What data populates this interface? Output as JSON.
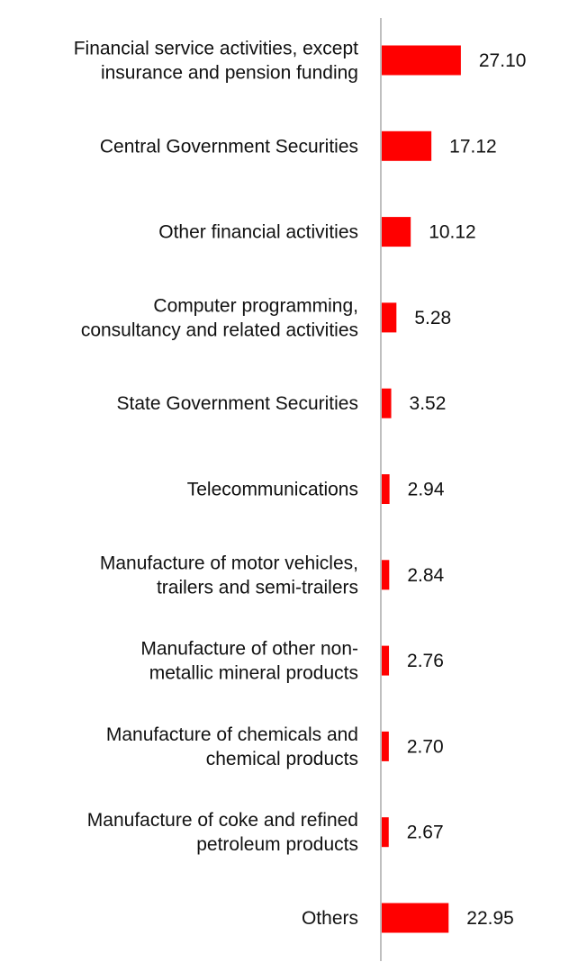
{
  "chart_data": {
    "type": "bar",
    "orientation": "horizontal",
    "title": "",
    "xlabel": "",
    "ylabel": "",
    "xlim": [
      0,
      60
    ],
    "grid": false,
    "legend": "none",
    "bar_color": "#ff0000",
    "axis_color": "#bfbfbf",
    "categories": [
      "Financial service activities, except insurance and pension funding",
      "Central Government Securities",
      "Other financial activities",
      "Computer programming, consultancy and related activities",
      "State Government Securities",
      "Telecommunications",
      "Manufacture of motor vehicles, trailers and semi-trailers",
      "Manufacture of other non-metallic mineral products",
      "Manufacture of chemicals and chemical products",
      "Manufacture of coke and refined petroleum products",
      "Others"
    ],
    "label_lines": [
      [
        "Financial service activities, except",
        "insurance and pension funding"
      ],
      [
        "Central Government Securities"
      ],
      [
        "Other financial activities"
      ],
      [
        "Computer programming,",
        "consultancy and related activities"
      ],
      [
        "State Government Securities"
      ],
      [
        "Telecommunications"
      ],
      [
        "Manufacture of motor vehicles,",
        "trailers and semi-trailers"
      ],
      [
        "Manufacture of other non-",
        "metallic mineral products"
      ],
      [
        "Manufacture of chemicals and",
        "chemical products"
      ],
      [
        "Manufacture of coke and refined",
        "petroleum products"
      ],
      [
        "Others"
      ]
    ],
    "values": [
      27.1,
      17.12,
      10.12,
      5.28,
      3.52,
      2.94,
      2.84,
      2.76,
      2.7,
      2.67,
      22.95
    ],
    "value_labels": [
      "27.10",
      "17.12",
      "10.12",
      "5.28",
      "3.52",
      "2.94",
      "2.84",
      "2.76",
      "2.70",
      "2.67",
      "22.95"
    ]
  }
}
